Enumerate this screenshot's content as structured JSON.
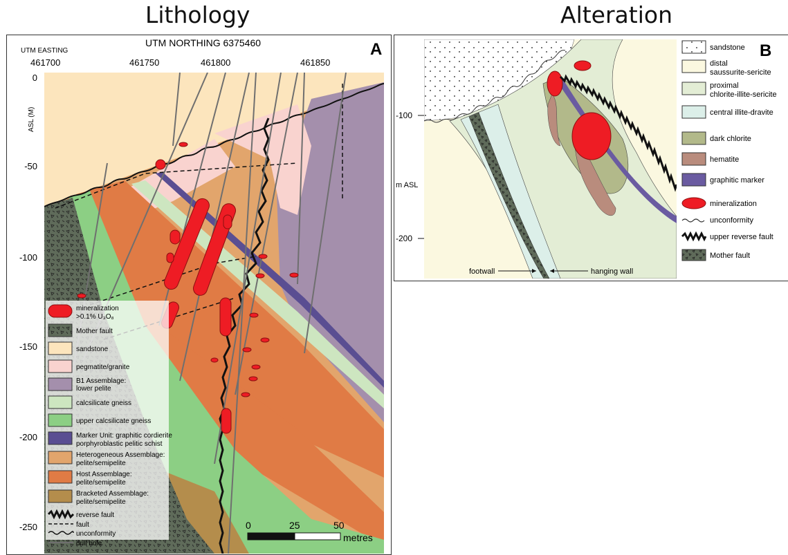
{
  "titles": {
    "left": "Lithology",
    "right": "Alteration"
  },
  "panel_a": {
    "letter": "A",
    "utm_easting_label": "UTM EASTING",
    "utm_northing_label": "UTM NORTHING 6375460",
    "easting_ticks": [
      "461700",
      "461750",
      "461800",
      "461850"
    ],
    "elevation_axis_label": "ASL (M)",
    "elevation_ticks": [
      "0",
      "-50",
      "-100",
      "-150",
      "-200",
      "-250"
    ],
    "legend": [
      {
        "key": "mineralization",
        "line1": "mineralization",
        "line2": ">0.1% U₃O₈",
        "color": "#ee1c24"
      },
      {
        "key": "mother_fault",
        "line1": "Mother fault",
        "line2": "",
        "color": "#5f6b5a"
      },
      {
        "key": "sandstone",
        "line1": "sandstone",
        "line2": "",
        "color": "#fce5bd"
      },
      {
        "key": "pegmatite",
        "line1": "pegmatite/granite",
        "line2": "",
        "color": "#f9d3cf"
      },
      {
        "key": "b1",
        "line1": "B1 Assemblage:",
        "line2": "lower pelite",
        "color": "#a48fac"
      },
      {
        "key": "calcsilicate",
        "line1": "calcsilicate gneiss",
        "line2": "",
        "color": "#cde6c0"
      },
      {
        "key": "upper_calcsilicate",
        "line1": "upper calcsilicate gneiss",
        "line2": "",
        "color": "#8ccf84"
      },
      {
        "key": "marker",
        "line1": "Marker Unit: graphitic cordierite",
        "line2": "porphyroblastic pelitic schist",
        "color": "#5a4e92"
      },
      {
        "key": "heterogeneous",
        "line1": "Heterogeneous Assemblage:",
        "line2": "pelite/semipelite",
        "color": "#e2a56c"
      },
      {
        "key": "host",
        "line1": "Host Assemblage:",
        "line2": "pelite/semipelite",
        "color": "#e07b45"
      },
      {
        "key": "bracketed",
        "line1": "Bracketed Assemblage:",
        "line2": "pelite/semipelite",
        "color": "#b48d4c"
      }
    ],
    "line_legend": [
      {
        "key": "reverse_fault",
        "label": "reverse fault"
      },
      {
        "key": "fault",
        "label": "fault"
      },
      {
        "key": "unconformity",
        "label": "unconformity"
      },
      {
        "key": "drill_hole",
        "label": "drill hole"
      }
    ],
    "scale_ticks": [
      "0",
      "25",
      "50"
    ],
    "scale_unit": "metres"
  },
  "panel_b": {
    "letter": "B",
    "axis_label": "m ASL",
    "elevation_ticks": [
      "-100",
      "-200"
    ],
    "footwall_label": "footwall",
    "hanging_wall_label": "hanging wall",
    "legend": [
      {
        "key": "sandstone",
        "line1": "sandstone",
        "line2": "",
        "color": "#ffffff"
      },
      {
        "key": "distal",
        "line1": "distal",
        "line2": "saussurite-sericite",
        "color": "#fbf8e0"
      },
      {
        "key": "proximal",
        "line1": "proximal",
        "line2": "chlorite-illite-sericite",
        "color": "#e3edd5"
      },
      {
        "key": "central",
        "line1": "central illite-dravite",
        "line2": "",
        "color": "#dcefe9"
      },
      {
        "key": "dark_chlorite",
        "line1": "dark chlorite",
        "line2": "",
        "color": "#b2b98a"
      },
      {
        "key": "hematite",
        "line1": "hematite",
        "line2": "",
        "color": "#b98c7d"
      },
      {
        "key": "graphitic",
        "line1": "graphitic marker",
        "line2": "",
        "color": "#6a5ba1"
      },
      {
        "key": "mineralization",
        "line1": "mineralization",
        "line2": "",
        "color": "#ee1c24"
      },
      {
        "key": "unconformity",
        "line1": "unconformity",
        "line2": "",
        "color": "#333333"
      },
      {
        "key": "upper_reverse_fault",
        "line1": "upper reverse fault",
        "line2": "",
        "color": "#111111"
      },
      {
        "key": "mother_fault",
        "line1": "Mother fault",
        "line2": "",
        "color": "#5f6b5a"
      }
    ]
  }
}
